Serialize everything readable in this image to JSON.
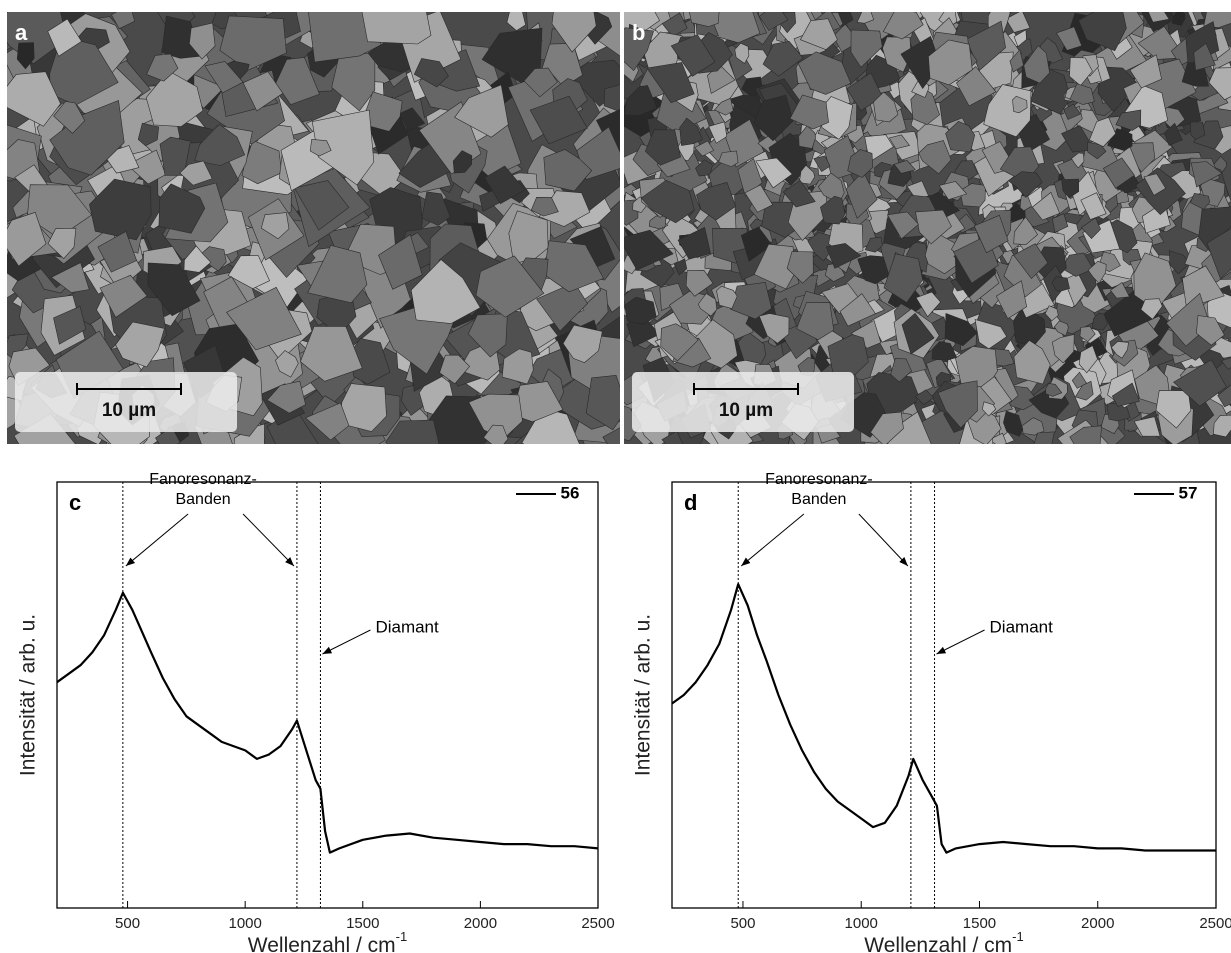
{
  "panels": [
    {
      "label": "a",
      "scale_bar": "10 µm"
    },
    {
      "label": "b",
      "scale_bar": "10 µm"
    }
  ],
  "chart_data": [
    {
      "type": "line",
      "panel_label": "c",
      "xlabel": "Wellenzahl / cm",
      "xlabel_superscript": "-1",
      "ylabel": "Intensität / arb. u.",
      "annotations": [
        "Fanoresonanz-",
        "Banden",
        "Diamant"
      ],
      "marker_lines": [
        480,
        1220,
        1320
      ],
      "x": [
        200,
        250,
        300,
        350,
        400,
        450,
        480,
        520,
        560,
        600,
        650,
        700,
        750,
        800,
        850,
        900,
        950,
        1000,
        1050,
        1100,
        1150,
        1200,
        1220,
        1260,
        1300,
        1320,
        1340,
        1360,
        1400,
        1500,
        1600,
        1700,
        1800,
        1900,
        2000,
        2100,
        2200,
        2300,
        2400,
        2500
      ],
      "series": [
        {
          "name": "56",
          "color": "#000000",
          "values": [
            53,
            55,
            57,
            60,
            64,
            70,
            74,
            70,
            65,
            60,
            54,
            49,
            45,
            43,
            41,
            39,
            38,
            37,
            35,
            36,
            38,
            42,
            44,
            37,
            30,
            28,
            18,
            13,
            14,
            16,
            17,
            17.5,
            16.5,
            16,
            15.5,
            15,
            15,
            14.5,
            14.5,
            14
          ]
        }
      ],
      "xlim": [
        200,
        2500
      ],
      "xticks": [
        500,
        1000,
        1500,
        2000,
        2500
      ],
      "ylim": [
        0,
        100
      ]
    },
    {
      "type": "line",
      "panel_label": "d",
      "xlabel": "Wellenzahl / cm",
      "xlabel_superscript": "-1",
      "ylabel": "Intensität / arb. u.",
      "annotations": [
        "Fanoresonanz-",
        "Banden",
        "Diamant"
      ],
      "marker_lines": [
        480,
        1210,
        1310
      ],
      "x": [
        200,
        250,
        300,
        350,
        400,
        450,
        480,
        520,
        560,
        600,
        650,
        700,
        750,
        800,
        850,
        900,
        950,
        1000,
        1050,
        1100,
        1150,
        1200,
        1220,
        1260,
        1300,
        1320,
        1340,
        1360,
        1400,
        1500,
        1600,
        1700,
        1800,
        1900,
        2000,
        2100,
        2200,
        2300,
        2400,
        2500
      ],
      "series": [
        {
          "name": "57",
          "color": "#000000",
          "values": [
            48,
            50,
            53,
            57,
            62,
            70,
            76,
            71,
            64,
            58,
            50,
            43,
            37,
            32,
            28,
            25,
            23,
            21,
            19,
            20,
            24,
            31,
            35,
            30,
            26,
            24,
            15,
            13,
            14,
            15,
            15.5,
            15,
            14.5,
            14.5,
            14,
            14,
            13.5,
            13.5,
            13.5,
            13.5
          ]
        }
      ],
      "xlim": [
        200,
        2500
      ],
      "xticks": [
        500,
        1000,
        1500,
        2000,
        2500
      ],
      "ylim": [
        0,
        100
      ]
    }
  ]
}
